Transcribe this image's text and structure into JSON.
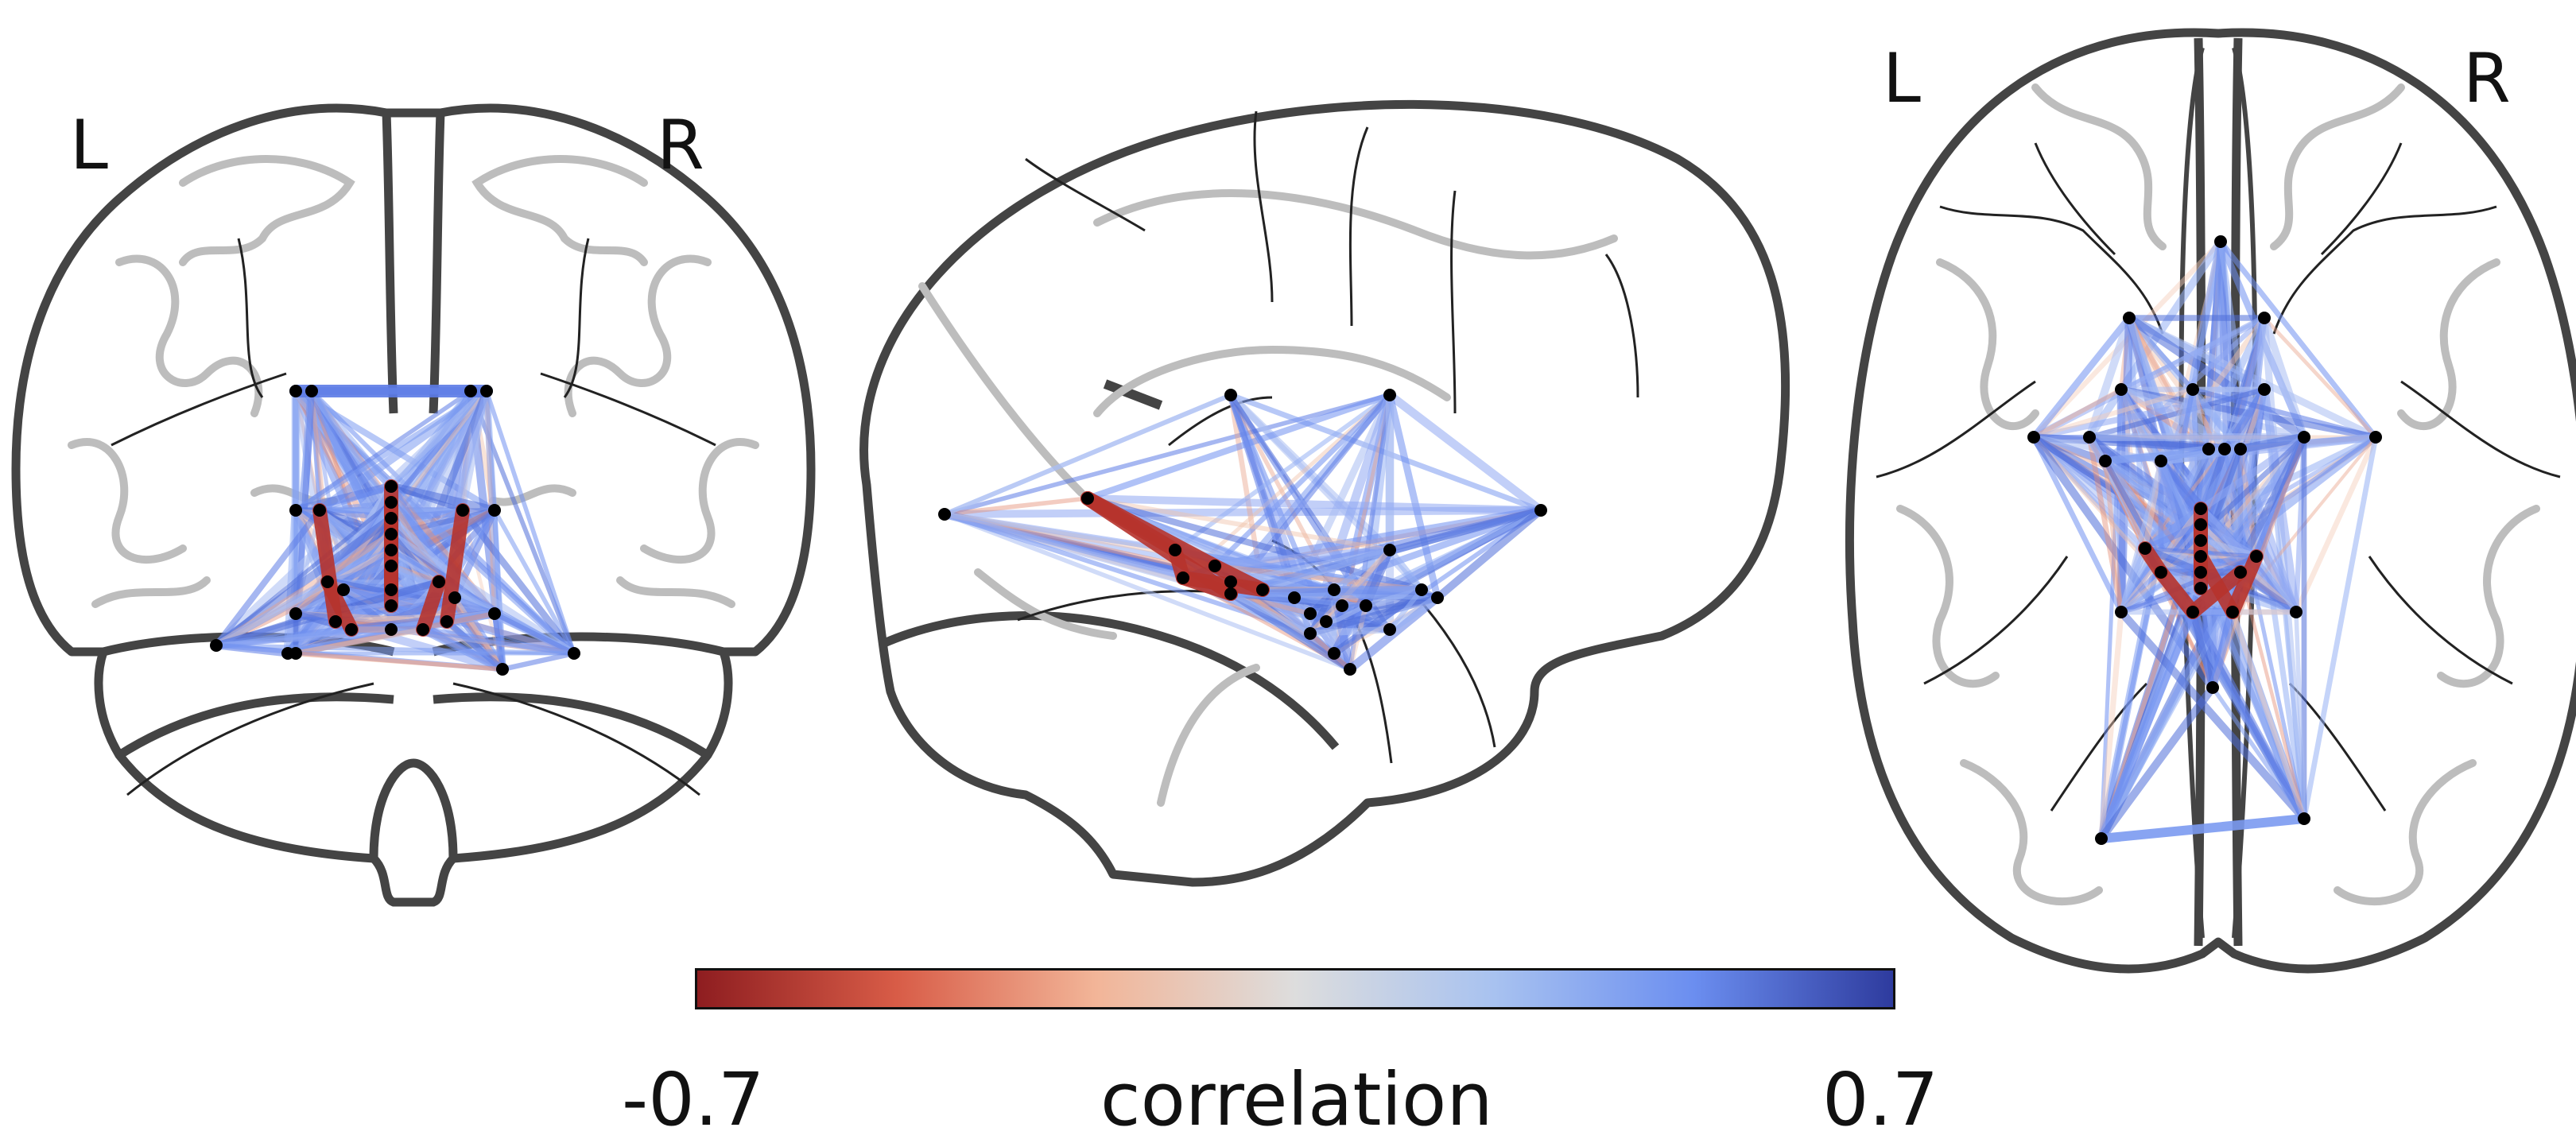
{
  "views": {
    "coronal": {
      "left_label": "L",
      "right_label": "R"
    },
    "axial": {
      "left_label": "L",
      "right_label": "R"
    }
  },
  "colorbar": {
    "label": "correlation",
    "min_label": "-0.7",
    "max_label": "0.7",
    "min": -0.7,
    "max": 0.7,
    "colormap_stops": [
      "#8e1d20",
      "#d85c47",
      "#f2b598",
      "#dddddd",
      "#a8c2f0",
      "#6b8ef0",
      "#2e3b9e"
    ]
  },
  "colors": {
    "outline_dark": "#444444",
    "outline_gray": "#bdbdbd",
    "node": "#000000"
  }
}
